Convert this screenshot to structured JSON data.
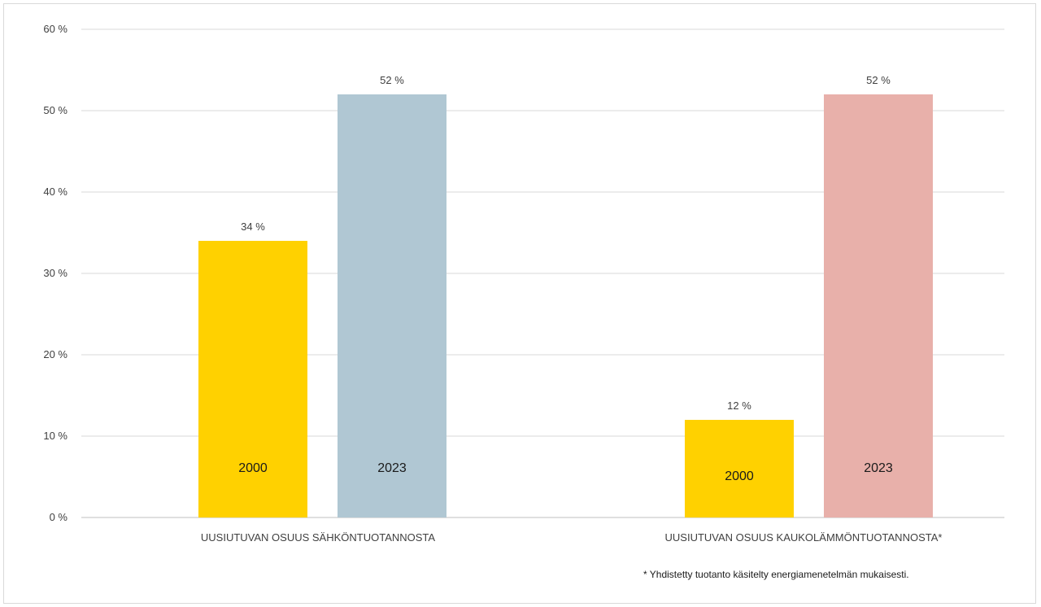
{
  "chart_data": {
    "type": "bar",
    "categories": [
      "UUSIUTUVAN OSUUS SÄHKÖNTUOTANNOSTA",
      "UUSIUTUVAN OSUUS KAUKOLÄMMÖNTUOTANNOSTA*"
    ],
    "bars": [
      {
        "category_index": 0,
        "year": "2000",
        "value": 34,
        "label": "34 %",
        "color": "#ffd100"
      },
      {
        "category_index": 0,
        "year": "2023",
        "value": 52,
        "label": "52 %",
        "color": "#b0c7d3"
      },
      {
        "category_index": 1,
        "year": "2000",
        "value": 12,
        "label": "12 %",
        "color": "#ffd100"
      },
      {
        "category_index": 1,
        "year": "2023",
        "value": 52,
        "label": "52 %",
        "color": "#e8b0aa"
      }
    ],
    "y_ticks": [
      "0 %",
      "10 %",
      "20 %",
      "30 %",
      "40 %",
      "50 %",
      "60 %"
    ],
    "ylim": [
      0,
      60
    ],
    "grid": true,
    "legend": "none",
    "footnote": "* Yhdistetty tuotanto käsitelty energiamenetelmän mukaisesti."
  }
}
